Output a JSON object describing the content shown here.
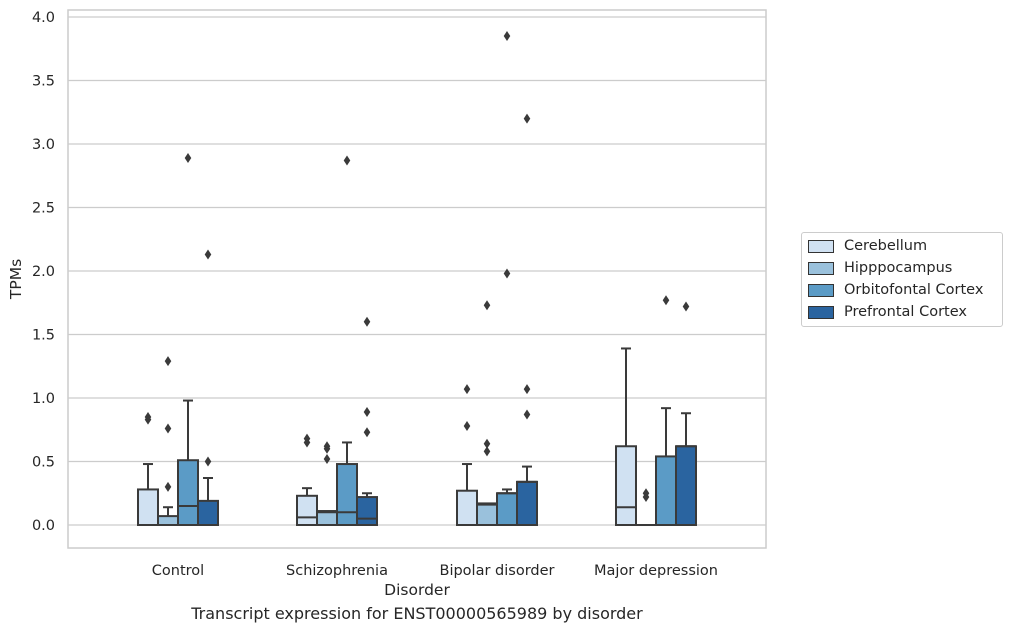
{
  "chart_data": {
    "type": "box",
    "xlabel": "Disorder",
    "ylabel": "TPMs",
    "caption": "Transcript expression for ENST00000565989 by disorder",
    "ylim": [
      -0.19,
      4.05
    ],
    "yticks": [
      "0.0",
      "0.5",
      "1.0",
      "1.5",
      "2.0",
      "2.5",
      "3.0",
      "3.5",
      "4.0"
    ],
    "ytick_values": [
      0,
      0.5,
      1.0,
      1.5,
      2.0,
      2.5,
      3.0,
      3.5,
      4.0
    ],
    "grid": true,
    "legend_placement": "right, outside",
    "categories": [
      "Control",
      "Schizophrenia",
      "Bipolar disorder",
      "Major depression"
    ],
    "series": [
      {
        "name": "Cerebellum",
        "color": "#d0e1f2",
        "boxes": [
          {
            "q1": 0,
            "median": 0,
            "q3": 0.28,
            "whisker_low": 0,
            "whisker_high": 0.48,
            "outliers": [
              0.83,
              0.85
            ]
          },
          {
            "q1": 0,
            "median": 0.06,
            "q3": 0.23,
            "whisker_low": 0,
            "whisker_high": 0.29,
            "outliers": [
              0.65,
              0.68
            ]
          },
          {
            "q1": 0,
            "median": 0,
            "q3": 0.27,
            "whisker_low": 0,
            "whisker_high": 0.48,
            "outliers": [
              0.78,
              1.07
            ]
          },
          {
            "q1": 0,
            "median": 0.14,
            "q3": 0.62,
            "whisker_low": 0,
            "whisker_high": 1.39,
            "outliers": []
          }
        ]
      },
      {
        "name": "Hipppocampus",
        "color": "#9ac1dc",
        "boxes": [
          {
            "q1": 0,
            "median": 0,
            "q3": 0.07,
            "whisker_low": 0,
            "whisker_high": 0.14,
            "outliers": [
              0.3,
              0.76,
              1.29
            ]
          },
          {
            "q1": 0,
            "median": 0.1,
            "q3": 0.11,
            "whisker_low": 0,
            "whisker_high": 0.11,
            "outliers": [
              0.52,
              0.6,
              0.62
            ]
          },
          {
            "q1": 0,
            "median": 0.16,
            "q3": 0.17,
            "whisker_low": 0,
            "whisker_high": 0.17,
            "outliers": [
              0.58,
              0.64,
              1.73
            ]
          },
          {
            "q1": 0,
            "median": 0,
            "q3": 0,
            "whisker_low": 0,
            "whisker_high": 0,
            "outliers": [
              0.22,
              0.25
            ]
          }
        ]
      },
      {
        "name": "Orbitofontal Cortex",
        "color": "#5b9bc6",
        "boxes": [
          {
            "q1": 0,
            "median": 0.15,
            "q3": 0.51,
            "whisker_low": 0,
            "whisker_high": 0.98,
            "outliers": [
              2.89
            ]
          },
          {
            "q1": 0,
            "median": 0.1,
            "q3": 0.48,
            "whisker_low": 0,
            "whisker_high": 0.65,
            "outliers": [
              2.87
            ]
          },
          {
            "q1": 0,
            "median": 0.25,
            "q3": 0.25,
            "whisker_low": 0,
            "whisker_high": 0.28,
            "outliers": [
              1.98,
              3.85
            ]
          },
          {
            "q1": 0,
            "median": 0,
            "q3": 0.54,
            "whisker_low": 0,
            "whisker_high": 0.92,
            "outliers": [
              1.77
            ]
          }
        ]
      },
      {
        "name": "Prefrontal Cortex",
        "color": "#2a64a0",
        "boxes": [
          {
            "q1": 0,
            "median": 0,
            "q3": 0.19,
            "whisker_low": 0,
            "whisker_high": 0.37,
            "outliers": [
              0.5,
              2.13
            ]
          },
          {
            "q1": 0,
            "median": 0.05,
            "q3": 0.22,
            "whisker_low": 0,
            "whisker_high": 0.25,
            "outliers": [
              0.73,
              0.89,
              1.6
            ]
          },
          {
            "q1": 0,
            "median": 0.34,
            "q3": 0.34,
            "whisker_low": 0,
            "whisker_high": 0.46,
            "outliers": [
              0.87,
              1.07,
              3.2
            ]
          },
          {
            "q1": 0,
            "median": 0.62,
            "q3": 0.62,
            "whisker_low": 0,
            "whisker_high": 0.88,
            "outliers": [
              1.72
            ]
          }
        ]
      }
    ]
  }
}
